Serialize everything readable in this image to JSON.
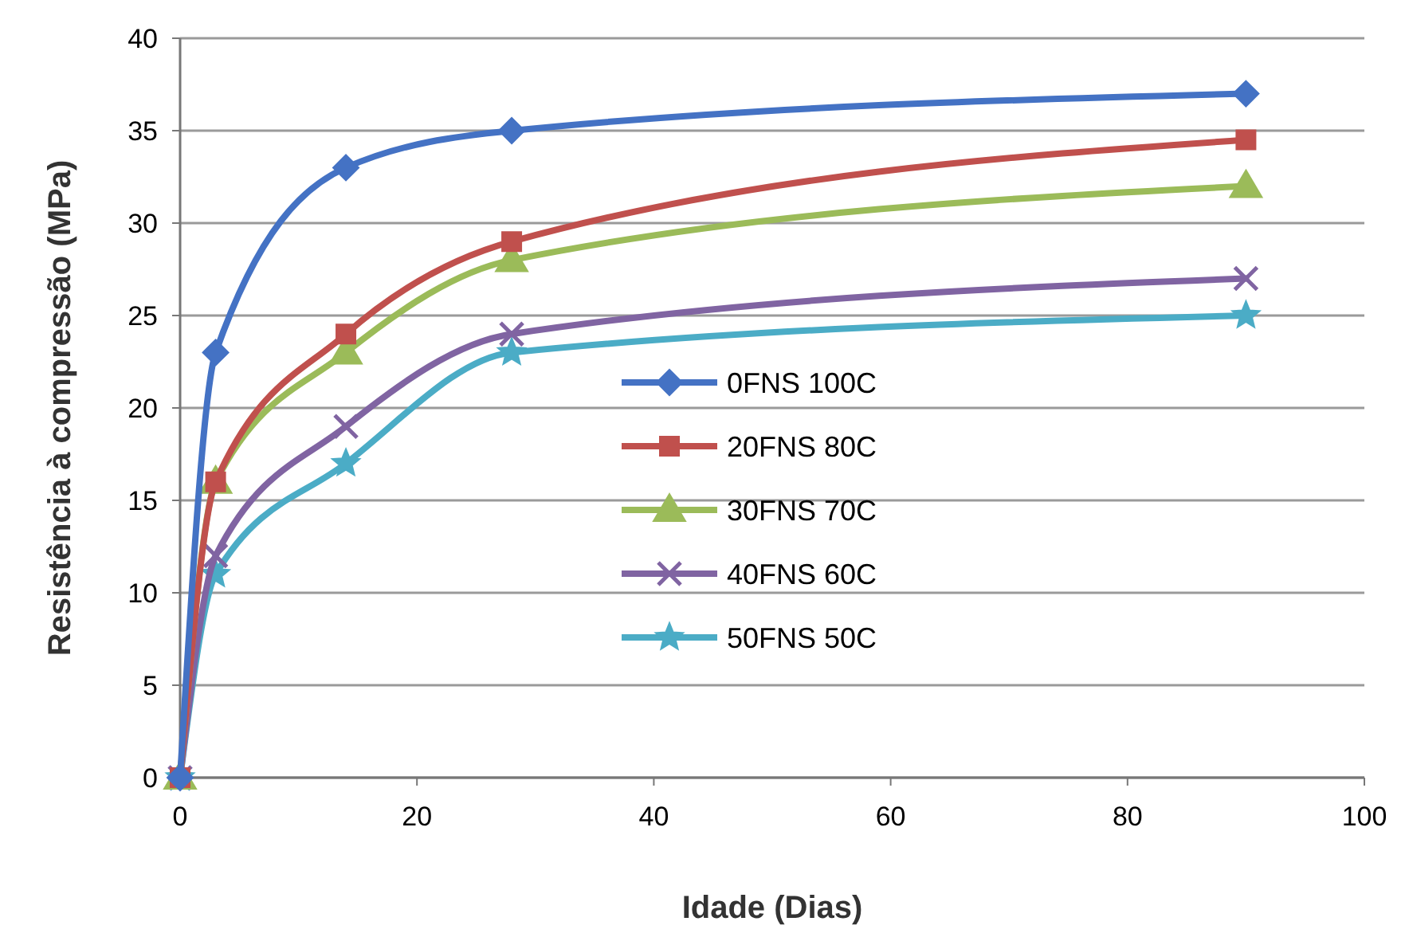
{
  "chart_data": {
    "type": "line",
    "xlabel": "Idade (Dias)",
    "ylabel": "Resistência à compressão (MPa)",
    "xlim": [
      0,
      100
    ],
    "xticks": [
      0,
      20,
      40,
      60,
      80,
      100
    ],
    "ylim": [
      0,
      40
    ],
    "yticks": [
      0,
      5,
      10,
      15,
      20,
      25,
      30,
      35,
      40
    ],
    "grid": "y",
    "legend": "right",
    "line_style": "solid",
    "series": [
      {
        "name": "0FNS 100C",
        "color": "#4472c4",
        "marker": "diamond",
        "x": [
          0,
          3,
          14,
          28,
          90
        ],
        "values": [
          0,
          23,
          33,
          35,
          37
        ]
      },
      {
        "name": "20FNS 80C",
        "color": "#c0504d",
        "marker": "square",
        "x": [
          0,
          3,
          14,
          28,
          90
        ],
        "values": [
          0,
          16,
          24,
          29,
          34.5
        ]
      },
      {
        "name": "30FNS 70C",
        "color": "#9bbb59",
        "marker": "triangle",
        "x": [
          0,
          3,
          14,
          28,
          90
        ],
        "values": [
          0,
          16,
          23,
          28,
          32
        ]
      },
      {
        "name": "40FNS 60C",
        "color": "#8064a2",
        "marker": "cross",
        "x": [
          0,
          3,
          14,
          28,
          90
        ],
        "values": [
          0,
          12,
          19,
          24,
          27
        ]
      },
      {
        "name": "50FNS 50C",
        "color": "#4bacc6",
        "marker": "star",
        "x": [
          0,
          3,
          14,
          28,
          90
        ],
        "values": [
          0,
          11,
          17,
          23,
          25
        ]
      }
    ]
  }
}
